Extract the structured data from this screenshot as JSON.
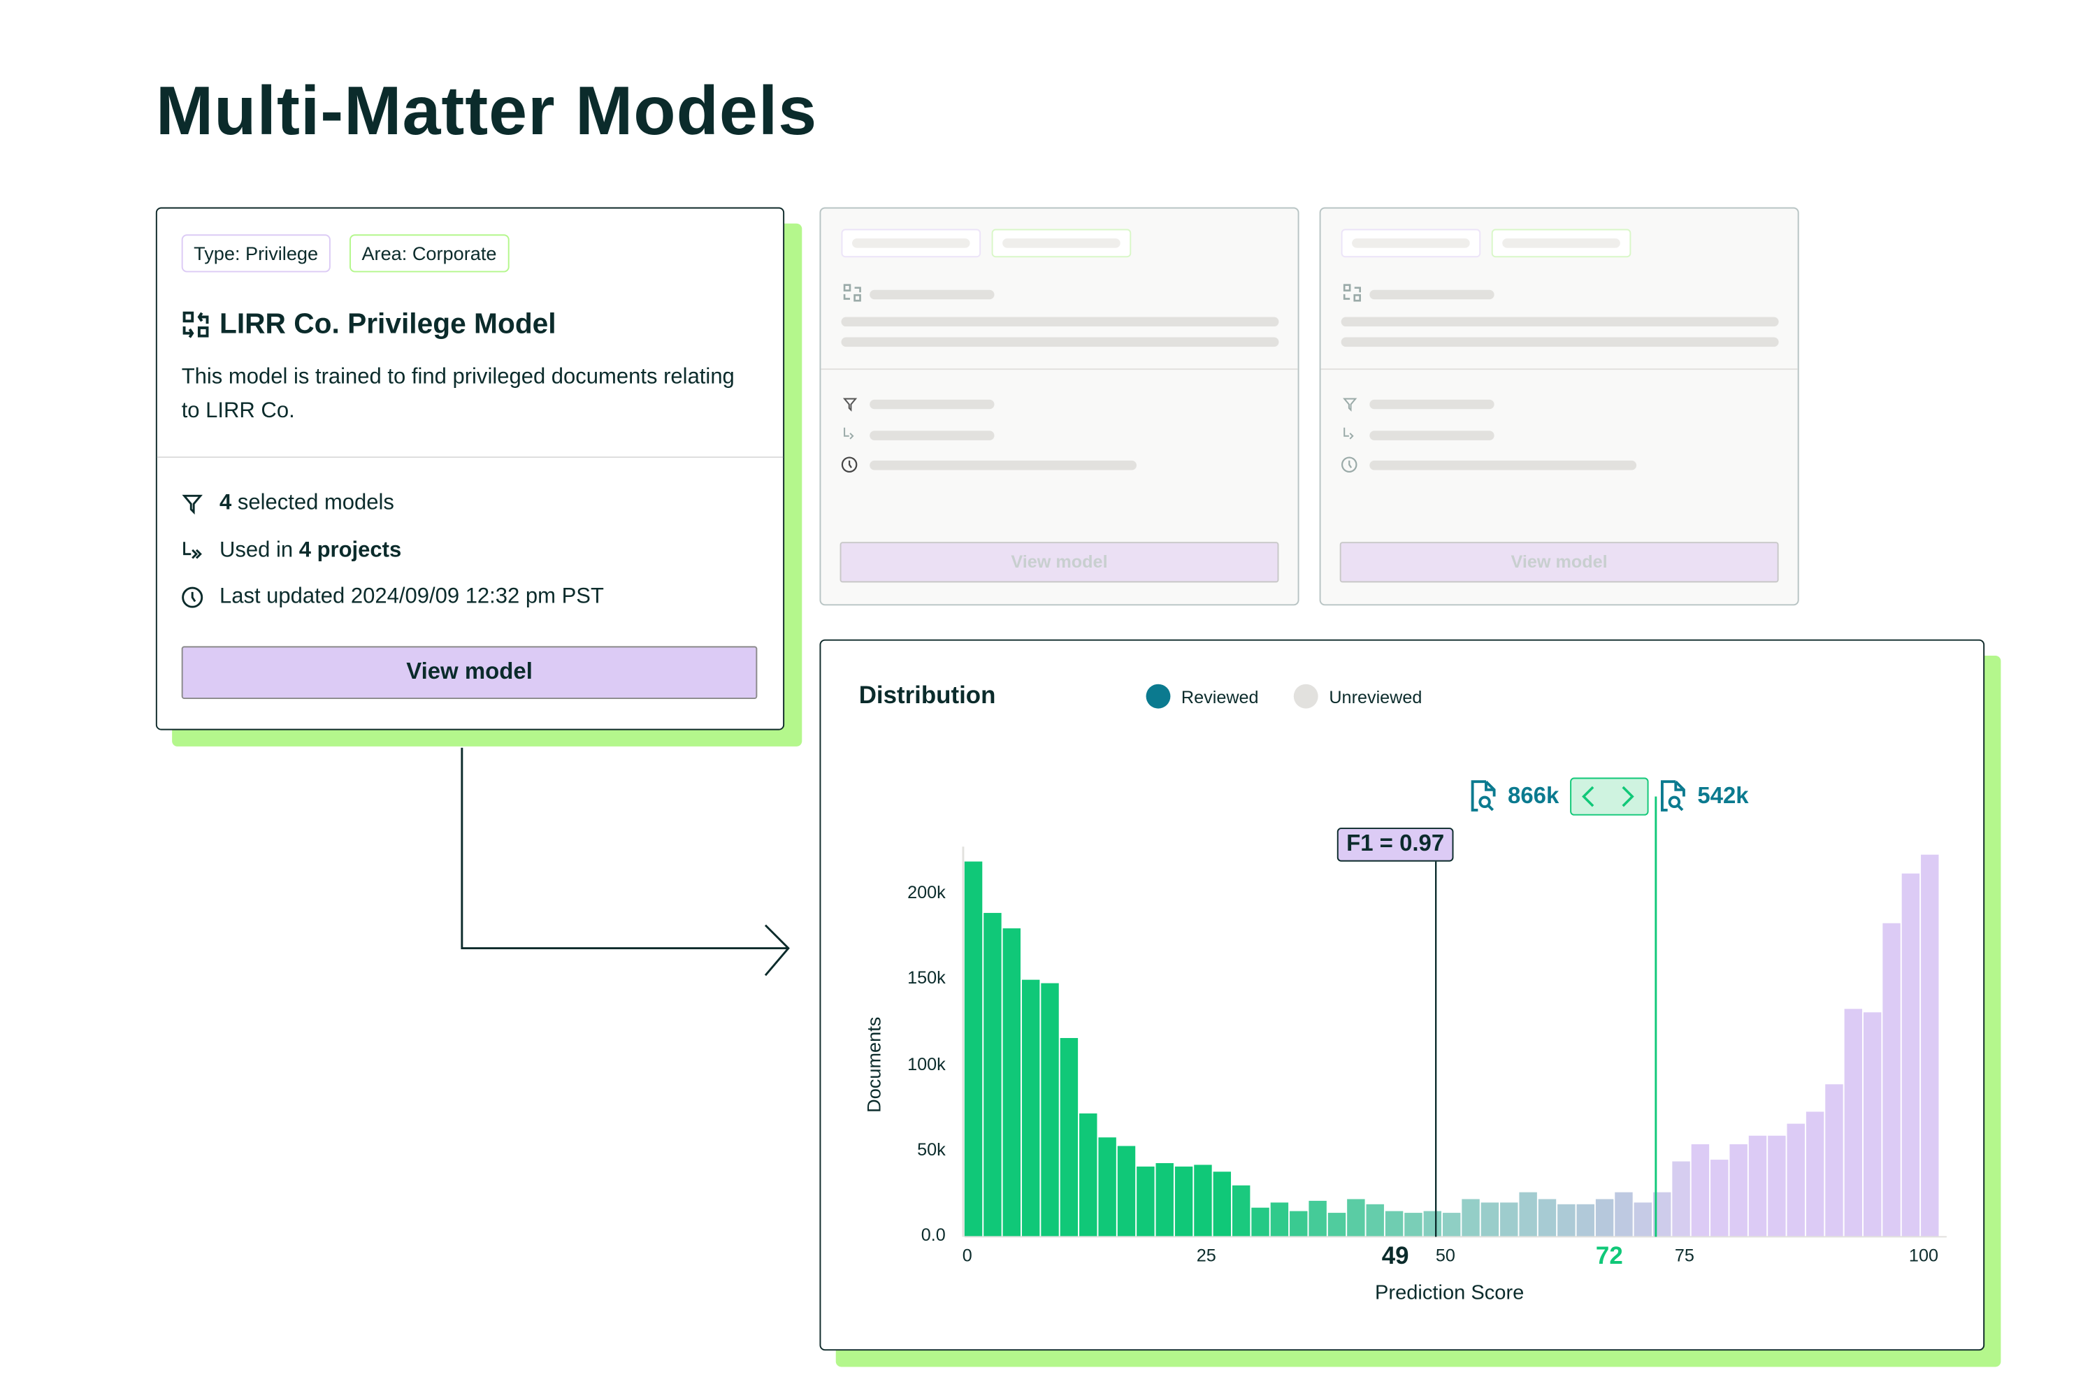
{
  "page": {
    "title": "Multi-Matter Models"
  },
  "colors": {
    "accent_green": "#b4f78c",
    "lavender": "#dccbf5",
    "teal": "#0b7a8f",
    "threshold_green": "#10c878",
    "ink": "#0b2b2b"
  },
  "model_card": {
    "tags": [
      "Type: Privilege",
      "Area: Corporate"
    ],
    "title": "LIRR Co. Privilege Model",
    "title_icon": "model-swap-icon",
    "description": "This model is trained to find privileged documents relating to LIRR Co.",
    "selected_count": "4",
    "selected_suffix": "selected models",
    "used_prefix": "Used in",
    "used_value": "4 projects",
    "updated_label": "Last updated 2024/09/09 12:32 pm PST",
    "button_label": "View model"
  },
  "placeholder_cards": [
    {
      "button_label": "View model"
    },
    {
      "button_label": "View model"
    }
  ],
  "distribution": {
    "title": "Distribution",
    "legend": [
      {
        "label": "Reviewed",
        "color": "#0b7a8f"
      },
      {
        "label": "Unreviewed",
        "color": "#e2e1de"
      }
    ],
    "f1_label": "F1 = 0.97",
    "left_count": "866k",
    "right_count": "542k",
    "threshold_f1_label": "49",
    "threshold_cut_label": "72"
  },
  "chart_data": {
    "type": "bar",
    "xlabel": "Prediction Score",
    "ylabel": "Documents",
    "xlim": [
      0,
      102
    ],
    "ylim": [
      0,
      225000
    ],
    "x_ticks": [
      0,
      25,
      50,
      75,
      100
    ],
    "y_ticks": [
      {
        "value": 0,
        "label": "0.0"
      },
      {
        "value": 50000,
        "label": "50k"
      },
      {
        "value": 100000,
        "label": "100k"
      },
      {
        "value": 150000,
        "label": "150k"
      },
      {
        "value": 200000,
        "label": "200k"
      }
    ],
    "bin_width": 2,
    "bin_starts": [
      0,
      2,
      4,
      6,
      8,
      10,
      12,
      14,
      16,
      18,
      20,
      22,
      24,
      26,
      28,
      30,
      32,
      34,
      36,
      38,
      40,
      42,
      44,
      46,
      48,
      50,
      52,
      54,
      56,
      58,
      60,
      62,
      64,
      66,
      68,
      70,
      72,
      74,
      76,
      78,
      80,
      82,
      84,
      86,
      88,
      90,
      92,
      94,
      96,
      98,
      100
    ],
    "values": [
      219000,
      189000,
      180000,
      150000,
      148000,
      116000,
      72000,
      58000,
      53000,
      41000,
      43000,
      41000,
      42000,
      38000,
      30000,
      17000,
      20000,
      15000,
      21000,
      14000,
      22000,
      19000,
      15000,
      14000,
      15000,
      14000,
      22000,
      20000,
      20000,
      26000,
      22000,
      19000,
      19000,
      22000,
      26000,
      20000,
      26000,
      44000,
      54000,
      45000,
      54000,
      59000,
      59000,
      66000,
      73000,
      89000,
      133000,
      131000,
      183000,
      212000,
      223000
    ],
    "color_stops": [
      {
        "x": 0,
        "color": "#10c878"
      },
      {
        "x": 26,
        "color": "#10c878"
      },
      {
        "x": 50,
        "color": "#8fcfc4"
      },
      {
        "x": 66,
        "color": "#b6c8dc"
      },
      {
        "x": 74,
        "color": "#d6cdf0"
      },
      {
        "x": 76,
        "color": "#dccbf5"
      },
      {
        "x": 100,
        "color": "#dccbf5"
      }
    ],
    "markers": [
      {
        "x": 49,
        "label": "F1 = 0.97"
      },
      {
        "x": 72
      }
    ],
    "grid": false,
    "legend_position": "top"
  }
}
